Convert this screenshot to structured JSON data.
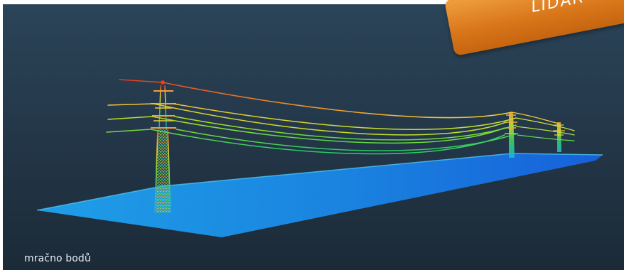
{
  "caption": "mračno bodů",
  "tag": {
    "text": "LIDAR",
    "color": "#e07f22"
  },
  "scene": {
    "description_icon": "point-cloud-power-line",
    "ground_color": "#1e8ee6",
    "color_scale": [
      "#1e8ee6",
      "#19c9c9",
      "#33d05a",
      "#c8e020",
      "#f39a2a",
      "#e03a22"
    ]
  }
}
